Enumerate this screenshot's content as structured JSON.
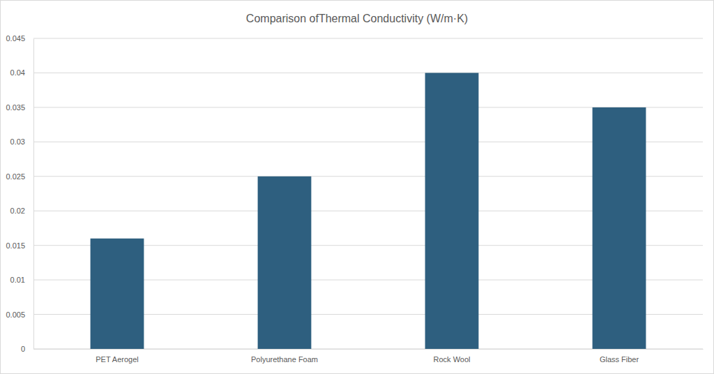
{
  "chart_data": {
    "type": "bar",
    "title": "Comparison ofThermal Conductivity (W/m·K)",
    "categories": [
      "PET Aerogel",
      "Polyurethane Foam",
      "Rock Wool",
      "Glass Fiber"
    ],
    "values": [
      0.016,
      0.025,
      0.04,
      0.035
    ],
    "color": "#2e5f7f",
    "ylim": [
      0,
      0.045
    ],
    "yticks": [
      0,
      0.005,
      0.01,
      0.015,
      0.02,
      0.025,
      0.03,
      0.035,
      0.04,
      0.045
    ],
    "grid": true
  }
}
